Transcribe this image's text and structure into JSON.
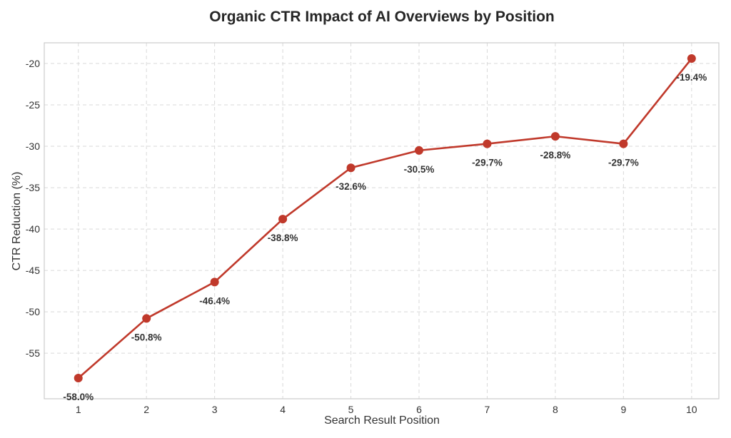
{
  "chart_data": {
    "type": "line",
    "title": "Organic CTR Impact of AI Overviews by Position",
    "xlabel": "Search Result Position",
    "ylabel": "CTR Reduction (%)",
    "x": [
      1,
      2,
      3,
      4,
      5,
      6,
      7,
      8,
      9,
      10
    ],
    "xticks": [
      "1",
      "2",
      "3",
      "4",
      "5",
      "6",
      "7",
      "8",
      "9",
      "10"
    ],
    "xlim": [
      0.5,
      10.4
    ],
    "ylim": [
      -60.5,
      -17.5
    ],
    "yticks": [
      -55,
      -50,
      -45,
      -40,
      -35,
      -30,
      -25,
      -20
    ],
    "series": [
      {
        "values": [
          -58.0,
          -50.8,
          -46.4,
          -38.8,
          -32.6,
          -30.5,
          -29.7,
          -28.8,
          -29.7,
          -19.4
        ],
        "labels": [
          "-58.0%",
          "-50.8%",
          "-46.4%",
          "-38.8%",
          "-32.6%",
          "-30.5%",
          "-29.7%",
          "-28.8%",
          "-29.7%",
          "-19.4%"
        ],
        "color": "#c0392b"
      }
    ],
    "grid": true,
    "legend": "none"
  }
}
